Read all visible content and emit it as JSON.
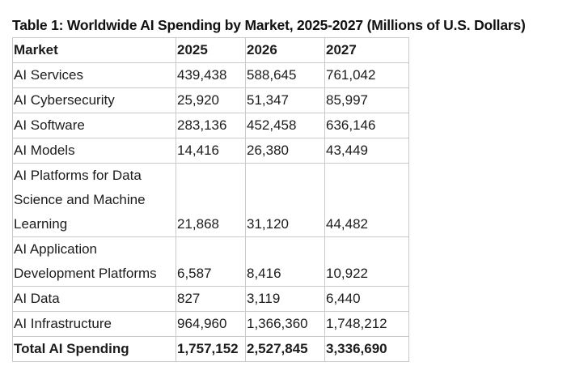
{
  "caption": "Table 1: Worldwide AI Spending by Market, 2025-2027 (Millions of U.S. Dollars)",
  "table": {
    "headers": [
      "Market",
      "2025",
      "2026",
      "2027"
    ],
    "rows": [
      [
        "AI Services",
        "439,438",
        "588,645",
        "761,042"
      ],
      [
        "AI Cybersecurity",
        "25,920",
        "51,347",
        "85,997"
      ],
      [
        "AI Software",
        "283,136",
        "452,458",
        "636,146"
      ],
      [
        "AI Models",
        "14,416",
        "26,380",
        "43,449"
      ],
      [
        "AI Platforms for Data Science and Machine Learning",
        "21,868",
        "31,120",
        "44,482"
      ],
      [
        "AI Application Development Platforms",
        "6,587",
        "8,416",
        "10,922"
      ],
      [
        "AI Data",
        "827",
        "3,119",
        "6,440"
      ],
      [
        "AI Infrastructure",
        "964,960",
        "1,366,360",
        "1,748,212"
      ]
    ],
    "total": [
      "Total AI Spending",
      "1,757,152",
      "2,527,845",
      "3,336,690"
    ]
  }
}
